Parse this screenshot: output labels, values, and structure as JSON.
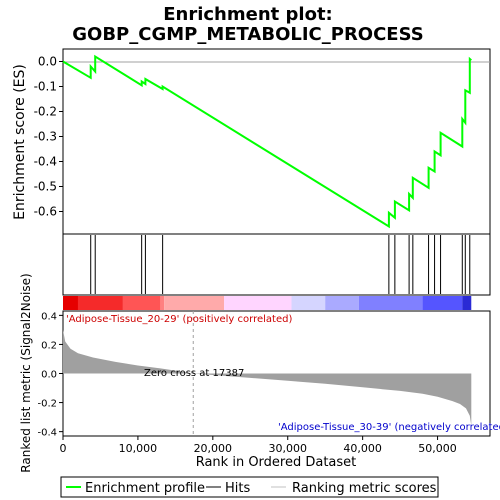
{
  "chart_data": {
    "type": "line",
    "title_line1": "Enrichment plot:",
    "title_line2": "GOBP_CGMP_METABOLIC_PROCESS",
    "es_panel": {
      "ylabel": "Enrichment score (ES)",
      "ylim": [
        -0.69,
        0.05
      ],
      "yticks": [
        0.0,
        -0.1,
        -0.2,
        -0.3,
        -0.4,
        -0.5,
        -0.6
      ],
      "ytick_labels": [
        "0.0",
        "-0.1",
        "-0.2",
        "-0.3",
        "-0.4",
        "-0.5",
        "-0.6"
      ],
      "series": [
        {
          "color": "#00ff00",
          "x": [
            0,
            3700,
            3700,
            4300,
            4300,
            10500,
            10500,
            11000,
            11000,
            13300,
            13300,
            43500,
            43500,
            44300,
            44300,
            46200,
            46200,
            46700,
            46700,
            48800,
            48800,
            49600,
            49600,
            50400,
            50400,
            53300,
            53300,
            53700,
            53700,
            54300,
            54300,
            54500
          ],
          "y": [
            0.0,
            -0.065,
            -0.02,
            -0.04,
            0.02,
            -0.095,
            -0.08,
            -0.09,
            -0.07,
            -0.11,
            -0.1,
            -0.66,
            -0.605,
            -0.625,
            -0.56,
            -0.595,
            -0.53,
            -0.545,
            -0.465,
            -0.505,
            -0.425,
            -0.44,
            -0.36,
            -0.375,
            -0.285,
            -0.34,
            -0.23,
            -0.245,
            -0.115,
            -0.125,
            0.01,
            0.005
          ]
        }
      ]
    },
    "hits": [
      3700,
      4300,
      10500,
      11000,
      13300,
      43500,
      44300,
      46200,
      46700,
      48800,
      49600,
      50400,
      53300,
      53700,
      54300
    ],
    "heatmap_colors": [
      "#e60000",
      "#f52a2a",
      "#ff5555",
      "#ff8080",
      "#ffaaaa",
      "#ffd5ff",
      "#d5d5ff",
      "#aaaaff",
      "#8080ff",
      "#5555ff",
      "#2a2ad5",
      "#0000aa"
    ],
    "heatmap_breaks": [
      0,
      2000,
      8000,
      13000,
      13500,
      21500,
      30500,
      35000,
      39500,
      48000,
      53300,
      54500
    ],
    "label_pos": "'Adipose-Tissue_20-29' (positively correlated)",
    "label_neg": "'Adipose-Tissue_30-39' (negatively correlated)",
    "metric_panel": {
      "ylabel": "Ranked list metric (Signal2Noise)",
      "ylim": [
        -0.43,
        0.43
      ],
      "yticks": [
        0.4,
        0.2,
        0.0,
        -0.2,
        -0.4
      ],
      "ytick_labels": [
        "0.4",
        "0.2",
        "0.0",
        "-0.2",
        "-0.4"
      ],
      "zero_cross_label": "Zero cross at 17387",
      "zero_cross": 17387,
      "curve_x": [
        0,
        300,
        1000,
        2000,
        4000,
        7000,
        10000,
        13000,
        15000,
        17387,
        20000,
        25000,
        30000,
        35000,
        40000,
        45000,
        48000,
        50000,
        52000,
        53000,
        53800,
        54300,
        54500
      ],
      "curve_y": [
        0.3,
        0.22,
        0.17,
        0.14,
        0.11,
        0.08,
        0.055,
        0.035,
        0.02,
        0.0,
        -0.01,
        -0.03,
        -0.05,
        -0.07,
        -0.095,
        -0.12,
        -0.14,
        -0.16,
        -0.19,
        -0.21,
        -0.24,
        -0.29,
        -0.36
      ],
      "fill_color": "#a0a0a0"
    },
    "xaxis": {
      "label": "Rank in Ordered Dataset",
      "xlim": [
        0,
        57000
      ],
      "xticks": [
        0,
        10000,
        20000,
        30000,
        40000,
        50000
      ],
      "xtick_labels": [
        "0",
        "10,000",
        "20,000",
        "30,000",
        "40,000",
        "50,000"
      ]
    },
    "legend": {
      "placement": "bottom",
      "items": [
        {
          "label": "Enrichment profile",
          "color": "#00ff00"
        },
        {
          "label": "Hits",
          "color": "#000000"
        },
        {
          "label": "Ranking metric scores",
          "color": "#c0c0c0"
        }
      ]
    }
  }
}
